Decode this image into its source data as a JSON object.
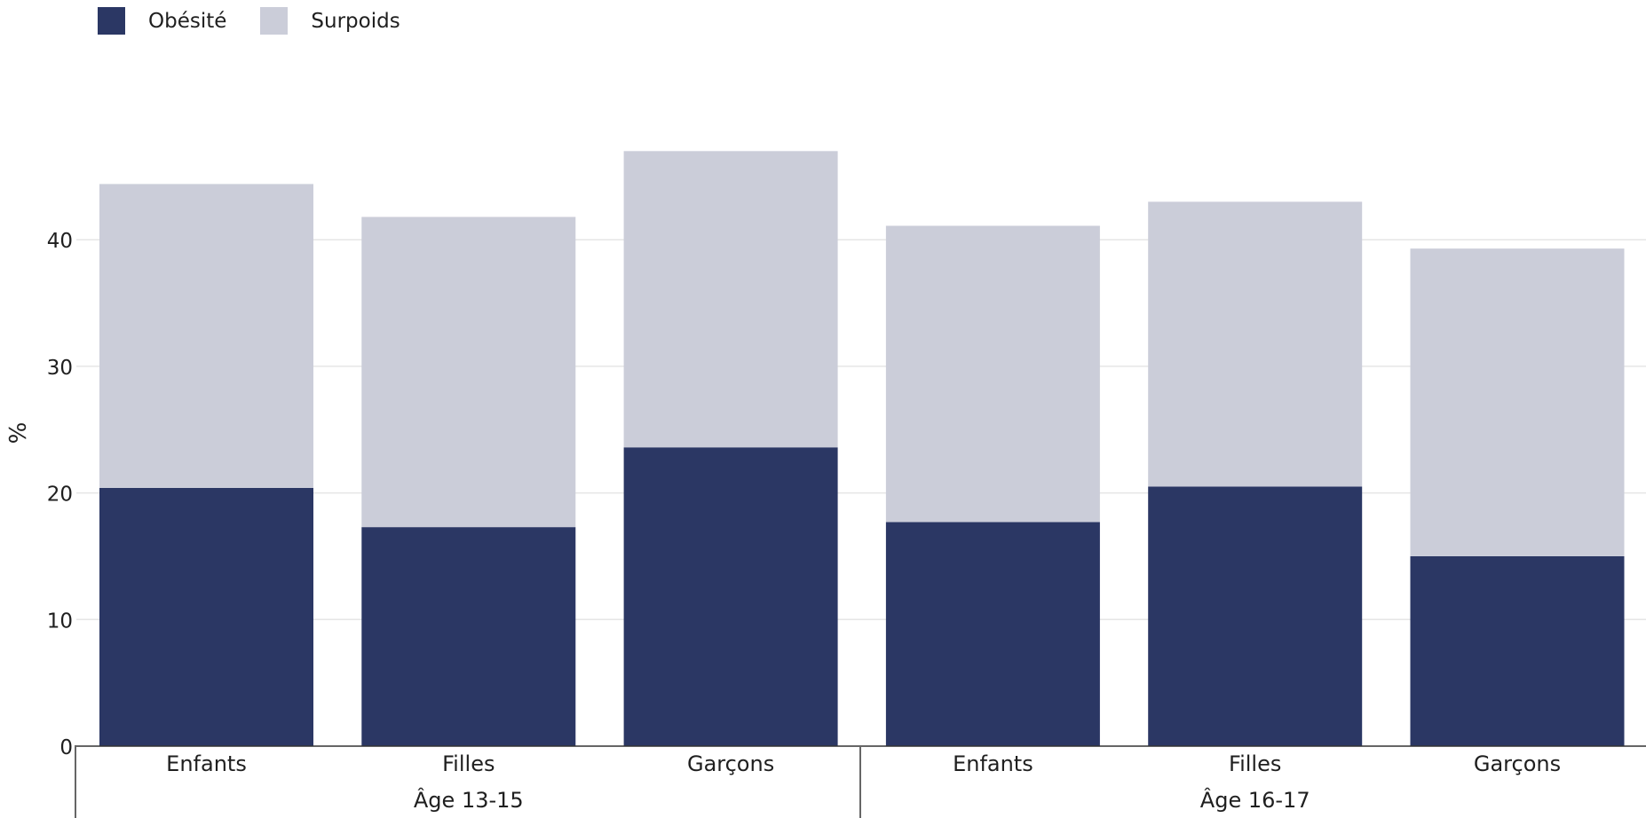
{
  "chart_data": {
    "type": "bar",
    "stacked": true,
    "ylabel": "%",
    "ylim": [
      0,
      50
    ],
    "yticks": [
      0,
      10,
      20,
      30,
      40
    ],
    "grid": true,
    "legend_position": "top-left",
    "groups": [
      {
        "label": "Âge 13-15",
        "categories": [
          "Enfants",
          "Filles",
          "Garçons"
        ]
      },
      {
        "label": "Âge 16-17",
        "categories": [
          "Enfants",
          "Filles",
          "Garçons"
        ]
      }
    ],
    "categories": [
      "Enfants",
      "Filles",
      "Garçons",
      "Enfants",
      "Filles",
      "Garçons"
    ],
    "series": [
      {
        "name": "Obésité",
        "color": "#2b3764",
        "values": [
          20.4,
          17.3,
          23.6,
          17.7,
          20.5,
          15.0
        ]
      },
      {
        "name": "Surpoids",
        "color": "#cbcdd9",
        "values": [
          24.0,
          24.5,
          23.4,
          23.4,
          22.5,
          24.3
        ]
      }
    ]
  }
}
